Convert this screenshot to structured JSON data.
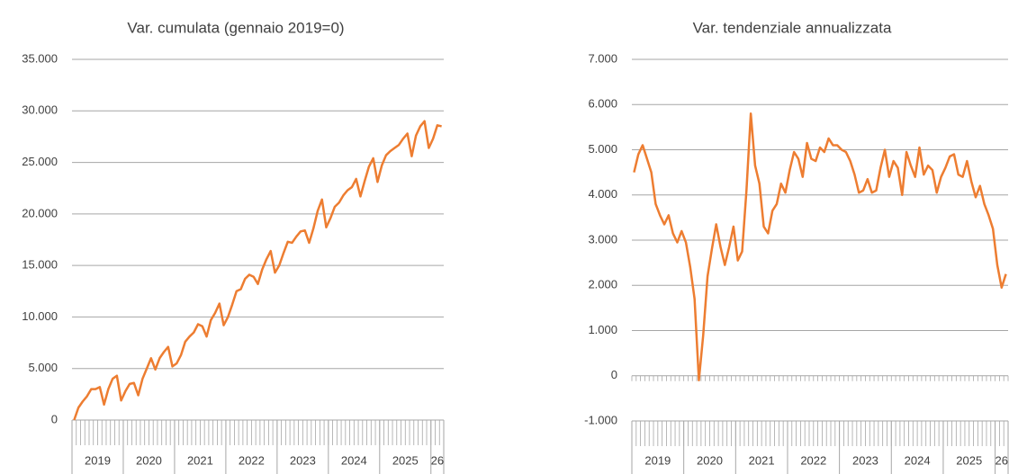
{
  "chart_data": [
    {
      "type": "line",
      "title": "Var. cumulata (gennaio 2019=0)",
      "categories": [
        null,
        null,
        null,
        null,
        null,
        null,
        null,
        null,
        null,
        null,
        null,
        null,
        null,
        null,
        null,
        null,
        null,
        null,
        null,
        null,
        null,
        null,
        null,
        null,
        null,
        null,
        null,
        null,
        null,
        null,
        null,
        null,
        null,
        null,
        null,
        null,
        null,
        null,
        null,
        null,
        null,
        null,
        null,
        null,
        null,
        null,
        null,
        null,
        null,
        null,
        null,
        null,
        null,
        null,
        null,
        null,
        null,
        null,
        null,
        null,
        null,
        null,
        null,
        null,
        null,
        null,
        null,
        null,
        null,
        null,
        null,
        null,
        null,
        null,
        null,
        null,
        null,
        null,
        null,
        null,
        null,
        null,
        null,
        null,
        null,
        null,
        null
      ],
      "year_labels": [
        "2019",
        "2020",
        "2021",
        "2022",
        "2023",
        "2024",
        "2025",
        "26"
      ],
      "series": [
        {
          "color": "#ed7d31",
          "values": [
            0,
            1200,
            1800,
            2300,
            3000,
            3000,
            3200,
            1500,
            3000,
            4000,
            4300,
            1900,
            2800,
            3500,
            3600,
            2400,
            4000,
            5000,
            6000,
            4900,
            6000,
            6600,
            7100,
            5200,
            5500,
            6300,
            7600,
            8100,
            8500,
            9300,
            9100,
            8100,
            9700,
            10400,
            11300,
            9200,
            10000,
            11200,
            12500,
            12700,
            13700,
            14100,
            13900,
            13200,
            14600,
            15600,
            16400,
            14300,
            15000,
            16200,
            17300,
            17200,
            17800,
            18300,
            18400,
            17200,
            18600,
            20300,
            21400,
            18700,
            19600,
            20700,
            21100,
            21800,
            22300,
            22600,
            23400,
            21700,
            23200,
            24600,
            25400,
            23100,
            24700,
            25700,
            26100,
            26400,
            26700,
            27300,
            27800,
            25600,
            27600,
            28500,
            29000,
            26400,
            27300,
            28600,
            28500
          ]
        }
      ],
      "ylim": [
        0,
        35000
      ],
      "yticks": [
        0,
        {
          "value": 5000,
          "label": "5.000"
        },
        {
          "value": 10000,
          "label": "10.000"
        },
        {
          "value": 15000,
          "label": "15.000"
        },
        {
          "value": 20000,
          "label": "20.000"
        },
        {
          "value": 25000,
          "label": "25.000"
        },
        {
          "value": 30000,
          "label": "30.000"
        },
        {
          "value": 35000,
          "label": "35.000"
        }
      ],
      "grid": true
    },
    {
      "type": "line",
      "title": "Var. tendenziale annualizzata",
      "categories": [
        null,
        null,
        null,
        null,
        null,
        null,
        null,
        null,
        null,
        null,
        null,
        null,
        null,
        null,
        null,
        null,
        null,
        null,
        null,
        null,
        null,
        null,
        null,
        null,
        null,
        null,
        null,
        null,
        null,
        null,
        null,
        null,
        null,
        null,
        null,
        null,
        null,
        null,
        null,
        null,
        null,
        null,
        null,
        null,
        null,
        null,
        null,
        null,
        null,
        null,
        null,
        null,
        null,
        null,
        null,
        null,
        null,
        null,
        null,
        null,
        null,
        null,
        null,
        null,
        null,
        null,
        null,
        null,
        null,
        null,
        null,
        null,
        null,
        null,
        null,
        null,
        null,
        null,
        null,
        null,
        null,
        null,
        null,
        null,
        null,
        null,
        null
      ],
      "year_labels": [
        "2019",
        "2020",
        "2021",
        "2022",
        "2023",
        "2024",
        "2025",
        "26"
      ],
      "series": [
        {
          "color": "#ed7d31",
          "values": [
            4500,
            4900,
            5100,
            4800,
            4500,
            3800,
            3550,
            3350,
            3550,
            3150,
            2950,
            3200,
            2950,
            2400,
            1700,
            -100,
            900,
            2200,
            2800,
            3350,
            2850,
            2450,
            2850,
            3300,
            2550,
            2750,
            4100,
            5800,
            4650,
            4250,
            3300,
            3150,
            3650,
            3800,
            4250,
            4050,
            4550,
            4950,
            4800,
            4400,
            5150,
            4800,
            4750,
            5050,
            4950,
            5250,
            5100,
            5100,
            5000,
            4950,
            4750,
            4450,
            4050,
            4100,
            4350,
            4050,
            4100,
            4600,
            5000,
            4400,
            4750,
            4600,
            4000,
            4950,
            4650,
            4400,
            5050,
            4450,
            4650,
            4550,
            4050,
            4400,
            4600,
            4850,
            4900,
            4450,
            4400,
            4750,
            4300,
            3950,
            4200,
            3800,
            3550,
            3250,
            2450,
            1950,
            2250
          ]
        }
      ],
      "ylim": [
        -1000,
        7000
      ],
      "yticks": [
        {
          "value": -1000,
          "label": "-1.000"
        },
        0,
        {
          "value": 1000,
          "label": "1.000"
        },
        {
          "value": 2000,
          "label": "2.000"
        },
        {
          "value": 3000,
          "label": "3.000"
        },
        {
          "value": 4000,
          "label": "4.000"
        },
        {
          "value": 5000,
          "label": "5.000"
        },
        {
          "value": 6000,
          "label": "6.000"
        },
        {
          "value": 7000,
          "label": "7.000"
        }
      ],
      "grid": true
    }
  ]
}
